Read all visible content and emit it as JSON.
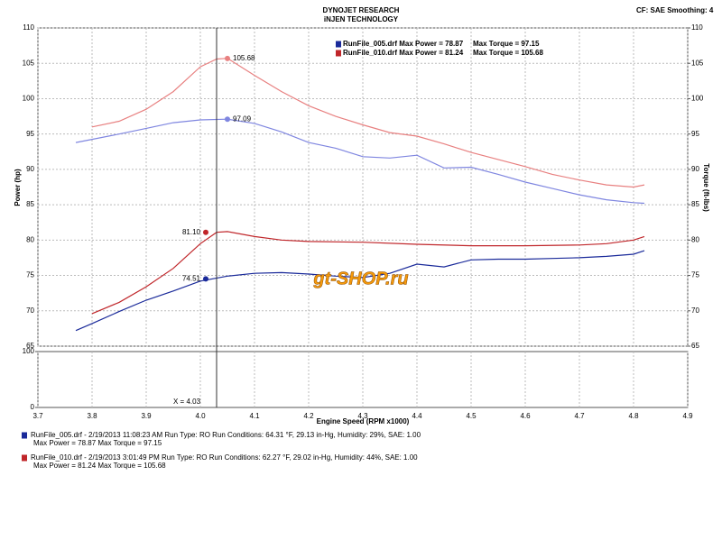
{
  "chart_data": {
    "type": "line",
    "title": "DYNOJET RESEARCH",
    "subtitle": "iNJEN TECHNOLOGY",
    "corner_note": "CF: SAE  Smoothing: 4",
    "y_label": "Power (hp)",
    "y2_label": "Torque (ft-lbs)",
    "x_label": "Engine Speed (RPM x1000)",
    "xlim": [
      3.7,
      4.9
    ],
    "xticks": [
      3.7,
      3.8,
      3.9,
      {
        "value": 4,
        "label": "4.0"
      },
      4.1,
      4.2,
      4.3,
      4.4,
      4.5,
      4.6,
      4.7,
      4.8,
      4.9
    ],
    "ylim": [
      65,
      110
    ],
    "yticks": [
      65,
      70,
      75,
      80,
      85,
      90,
      95,
      100,
      105,
      110
    ],
    "y2lim": [
      65,
      110
    ],
    "y2ticks": [
      65,
      70,
      75,
      80,
      85,
      90,
      95,
      100,
      105,
      110
    ],
    "lower_ylim": [
      0,
      100
    ],
    "lower_yticks": [
      0,
      100
    ],
    "grid": true,
    "series": [
      {
        "color": "#1a2a9a",
        "x": [
          3.77,
          3.8,
          3.85,
          3.9,
          3.95,
          4.0,
          4.05,
          4.1,
          4.15,
          4.2,
          4.25,
          4.3,
          4.35,
          4.4,
          4.45,
          4.5,
          4.55,
          4.6,
          4.65,
          4.7,
          4.75,
          4.8,
          4.82
        ],
        "values": [
          67.2,
          68.2,
          69.9,
          71.5,
          72.8,
          74.2,
          74.9,
          75.3,
          75.4,
          75.2,
          74.9,
          74.7,
          75.3,
          76.6,
          76.2,
          77.2,
          77.3,
          77.3,
          77.4,
          77.5,
          77.7,
          78.0,
          78.5
        ]
      },
      {
        "color": "#7f86e0",
        "axis": "y2",
        "x": [
          3.77,
          3.85,
          3.9,
          3.95,
          4.0,
          4.05,
          4.1,
          4.15,
          4.2,
          4.25,
          4.3,
          4.35,
          4.4,
          4.45,
          4.5,
          4.55,
          4.6,
          4.65,
          4.7,
          4.75,
          4.8,
          4.82
        ],
        "values": [
          93.8,
          95.0,
          95.8,
          96.6,
          97.0,
          97.1,
          96.5,
          95.3,
          93.8,
          93.0,
          91.8,
          91.6,
          92.0,
          90.2,
          90.3,
          89.3,
          88.2,
          87.3,
          86.4,
          85.7,
          85.3,
          85.2
        ]
      },
      {
        "color": "#c0262a",
        "x": [
          3.8,
          3.85,
          3.9,
          3.95,
          4.0,
          4.03,
          4.05,
          4.1,
          4.15,
          4.2,
          4.3,
          4.4,
          4.5,
          4.6,
          4.7,
          4.75,
          4.8,
          4.82
        ],
        "values": [
          69.6,
          71.2,
          73.4,
          76.0,
          79.5,
          81.1,
          81.2,
          80.5,
          80.0,
          79.8,
          79.7,
          79.4,
          79.2,
          79.2,
          79.3,
          79.5,
          80.0,
          80.5
        ]
      },
      {
        "color": "#e88080",
        "axis": "y2",
        "x": [
          3.8,
          3.85,
          3.9,
          3.95,
          4.0,
          4.03,
          4.05,
          4.1,
          4.15,
          4.2,
          4.25,
          4.3,
          4.35,
          4.4,
          4.45,
          4.5,
          4.55,
          4.6,
          4.65,
          4.7,
          4.75,
          4.8,
          4.82
        ],
        "values": [
          96.0,
          96.8,
          98.5,
          101.0,
          104.5,
          105.6,
          105.7,
          103.3,
          101.0,
          99.0,
          97.5,
          96.3,
          95.2,
          94.7,
          93.6,
          92.4,
          91.4,
          90.4,
          89.3,
          88.5,
          87.8,
          87.5,
          87.8
        ]
      }
    ],
    "annotations": [
      {
        "x": 4.05,
        "y": 105.68,
        "label": "105.68",
        "color": "#e88080"
      },
      {
        "x": 4.05,
        "y": 97.09,
        "label": "97.09",
        "color": "#7f86e0"
      },
      {
        "x": 4.01,
        "y": 81.1,
        "label": "81.10",
        "color": "#c0262a"
      },
      {
        "x": 4.01,
        "y": 74.51,
        "label": "74.51",
        "color": "#1a2a9a"
      }
    ],
    "cursor": {
      "x": 4.03,
      "label": "X = 4.03"
    },
    "legend": [
      {
        "text": "RunFile_005.drf Max Power = 78.87",
        "torque": "Max Torque = 97.15",
        "color": "#1a2a9a"
      },
      {
        "text": "RunFile_010.drf Max Power = 81.24",
        "torque": "Max Torque = 105.68",
        "color": "#c0262a"
      }
    ],
    "watermark": "gt-SHOP.ru",
    "runs": [
      {
        "line1": "RunFile_005.drf - 2/19/2013 11:08:23 AM  Run Type: RO  Run Conditions: 64.31 °F, 29.13 in-Hg,  Humidity:  29%, SAE: 1.00",
        "line2": "Max Power = 78.87  Max Torque = 97.15",
        "color": "#1a2a9a"
      },
      {
        "line1": "RunFile_010.drf - 2/19/2013 3:01:49 PM  Run Type: RO  Run Conditions: 62.27 °F, 29.02 in-Hg,  Humidity:  44%, SAE: 1.00",
        "line2": "Max Power = 81.24  Max Torque = 105.68",
        "color": "#c0262a"
      }
    ]
  }
}
